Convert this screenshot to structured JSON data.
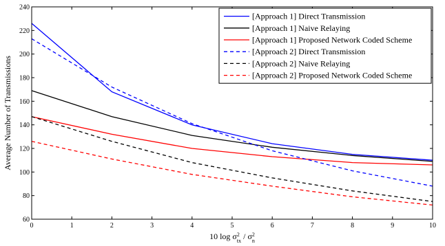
{
  "chart_data": {
    "type": "line",
    "xlabel_parts": {
      "prefix": "10 log ",
      "num": "σ",
      "num_sup": "2",
      "num_sub": "tx",
      "sep": " / ",
      "den": "σ",
      "den_sup": "2",
      "den_sub": "n"
    },
    "ylabel": "Average Number of Transmissions",
    "xlim": [
      0,
      10
    ],
    "ylim": [
      60,
      240
    ],
    "xticks": [
      0,
      1,
      2,
      3,
      4,
      5,
      6,
      7,
      8,
      9,
      10
    ],
    "yticks": [
      60,
      80,
      100,
      120,
      140,
      160,
      180,
      200,
      220,
      240
    ],
    "grid": false,
    "legend_position": "top-right",
    "x": [
      0,
      2,
      4,
      6,
      8,
      10
    ],
    "series": [
      {
        "name": "[Approach 1] Direct Transmission",
        "color": "#0000ff",
        "style": "solid",
        "values": [
          226,
          168,
          140,
          124,
          115,
          110
        ]
      },
      {
        "name": "[Approach 1] Naive Relaying",
        "color": "#000000",
        "style": "solid",
        "values": [
          169,
          147,
          131,
          121,
          114,
          109
        ]
      },
      {
        "name": "[Approach 1] Proposed Network Coded Scheme",
        "color": "#ff0000",
        "style": "solid",
        "values": [
          147,
          132,
          120,
          113,
          108,
          106
        ]
      },
      {
        "name": "[Approach 2] Direct Transmission",
        "color": "#0000ff",
        "style": "dashed",
        "values": [
          213,
          172,
          141,
          118,
          101,
          88
        ]
      },
      {
        "name": "[Approach 2] Naive Relaying",
        "color": "#000000",
        "style": "dashed",
        "values": [
          147,
          126,
          108,
          95,
          84,
          75
        ]
      },
      {
        "name": "[Approach 2] Proposed Network Coded Scheme",
        "color": "#ff0000",
        "style": "dashed",
        "values": [
          126,
          111,
          98,
          88,
          79,
          72
        ]
      }
    ]
  }
}
